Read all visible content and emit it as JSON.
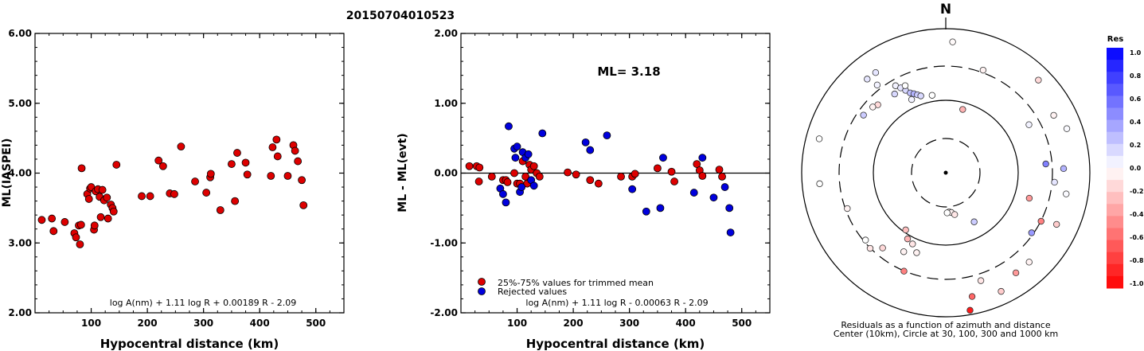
{
  "event_id": "20150704010523",
  "chart_data": [
    {
      "type": "scatter",
      "xlabel": "Hypocentral distance (km)",
      "ylabel": "ML(IASPEI)",
      "xlim": [
        0,
        550
      ],
      "ylim": [
        2.0,
        6.0
      ],
      "xticks": [
        "100",
        "200",
        "300",
        "400",
        "500"
      ],
      "yticks": [
        "2.00",
        "3.00",
        "4.00",
        "5.00",
        "6.00"
      ],
      "formula": "log A(nm) + 1.11 log R + 0.00189 R - 2.09",
      "series": [
        {
          "color": "#dd0000",
          "points": [
            [
              12,
              3.33
            ],
            [
              30,
              3.35
            ],
            [
              33,
              3.17
            ],
            [
              53,
              3.3
            ],
            [
              70,
              3.14
            ],
            [
              73,
              3.08
            ],
            [
              78,
              3.25
            ],
            [
              80,
              2.98
            ],
            [
              82,
              3.26
            ],
            [
              83,
              4.07
            ],
            [
              93,
              3.7
            ],
            [
              96,
              3.63
            ],
            [
              98,
              3.78
            ],
            [
              100,
              3.8
            ],
            [
              105,
              3.19
            ],
            [
              106,
              3.25
            ],
            [
              108,
              3.74
            ],
            [
              112,
              3.77
            ],
            [
              115,
              3.66
            ],
            [
              117,
              3.37
            ],
            [
              120,
              3.76
            ],
            [
              123,
              3.61
            ],
            [
              128,
              3.65
            ],
            [
              130,
              3.35
            ],
            [
              135,
              3.55
            ],
            [
              138,
              3.5
            ],
            [
              140,
              3.45
            ],
            [
              145,
              4.12
            ],
            [
              190,
              3.67
            ],
            [
              205,
              3.67
            ],
            [
              220,
              4.18
            ],
            [
              228,
              4.1
            ],
            [
              240,
              3.71
            ],
            [
              248,
              3.7
            ],
            [
              260,
              4.38
            ],
            [
              285,
              3.88
            ],
            [
              305,
              3.72
            ],
            [
              312,
              3.94
            ],
            [
              313,
              3.99
            ],
            [
              330,
              3.47
            ],
            [
              350,
              4.13
            ],
            [
              356,
              3.6
            ],
            [
              360,
              4.29
            ],
            [
              375,
              4.15
            ],
            [
              378,
              3.98
            ],
            [
              420,
              3.96
            ],
            [
              423,
              4.37
            ],
            [
              430,
              4.48
            ],
            [
              432,
              4.24
            ],
            [
              450,
              3.96
            ],
            [
              460,
              4.4
            ],
            [
              463,
              4.32
            ],
            [
              468,
              4.17
            ],
            [
              475,
              3.9
            ],
            [
              478,
              3.54
            ]
          ]
        }
      ]
    },
    {
      "type": "scatter",
      "xlabel": "Hypocentral distance (km)",
      "ylabel": "ML - ML(evt)",
      "xlim": [
        0,
        550
      ],
      "ylim": [
        -2.0,
        2.0
      ],
      "xticks": [
        "100",
        "200",
        "300",
        "400",
        "500"
      ],
      "yticks": [
        "-2.00",
        "-1.00",
        "0.00",
        "1.00",
        "2.00"
      ],
      "ml_text": "ML= 3.18",
      "formula": "log A(nm) + 1.11 log R - 0.00063 R - 2.09",
      "series": [
        {
          "name": "25%-75% values for trimmed mean",
          "color": "#dd0000",
          "points": [
            [
              15,
              0.1
            ],
            [
              28,
              0.1
            ],
            [
              32,
              -0.12
            ],
            [
              33,
              0.08
            ],
            [
              55,
              -0.05
            ],
            [
              75,
              -0.1
            ],
            [
              80,
              -0.1
            ],
            [
              83,
              -0.13
            ],
            [
              95,
              0.0
            ],
            [
              100,
              -0.15
            ],
            [
              105,
              -0.15
            ],
            [
              110,
              0.17
            ],
            [
              115,
              -0.05
            ],
            [
              118,
              -0.15
            ],
            [
              122,
              0.12
            ],
            [
              125,
              0.05
            ],
            [
              130,
              0.1
            ],
            [
              135,
              0.0
            ],
            [
              140,
              -0.05
            ],
            [
              190,
              0.01
            ],
            [
              205,
              -0.02
            ],
            [
              230,
              -0.1
            ],
            [
              245,
              -0.15
            ],
            [
              285,
              -0.05
            ],
            [
              305,
              -0.05
            ],
            [
              310,
              -0.01
            ],
            [
              350,
              0.07
            ],
            [
              375,
              0.02
            ],
            [
              380,
              -0.12
            ],
            [
              420,
              0.13
            ],
            [
              425,
              0.04
            ],
            [
              430,
              -0.04
            ],
            [
              460,
              0.05
            ],
            [
              465,
              -0.05
            ]
          ]
        },
        {
          "name": "Rejected values",
          "color": "#0000dd",
          "points": [
            [
              70,
              -0.22
            ],
            [
              75,
              -0.3
            ],
            [
              80,
              -0.42
            ],
            [
              85,
              0.67
            ],
            [
              95,
              0.35
            ],
            [
              97,
              0.22
            ],
            [
              100,
              0.38
            ],
            [
              105,
              -0.27
            ],
            [
              108,
              -0.2
            ],
            [
              110,
              0.3
            ],
            [
              115,
              0.22
            ],
            [
              120,
              0.27
            ],
            [
              125,
              -0.1
            ],
            [
              130,
              -0.18
            ],
            [
              145,
              0.57
            ],
            [
              222,
              0.44
            ],
            [
              230,
              0.33
            ],
            [
              260,
              0.54
            ],
            [
              305,
              -0.23
            ],
            [
              330,
              -0.55
            ],
            [
              355,
              -0.5
            ],
            [
              360,
              0.22
            ],
            [
              415,
              -0.28
            ],
            [
              430,
              0.22
            ],
            [
              450,
              -0.35
            ],
            [
              470,
              -0.2
            ],
            [
              478,
              -0.5
            ],
            [
              480,
              -0.85
            ]
          ]
        }
      ]
    },
    {
      "type": "scatter",
      "subtype": "polar-residuals",
      "north_label": "N",
      "caption_line1": "Residuals as a function of azimuth and distance",
      "caption_line2": "Center (10km), Circle at 30, 100, 300 and 1000 km",
      "colorbar_title": "Res",
      "colorbar_ticks": [
        "1.0",
        "0.8",
        "0.6",
        "0.4",
        "0.2",
        "0.0",
        "-0.2",
        "-0.4",
        "-0.6",
        "-0.8",
        "-1.0"
      ],
      "stations_az_dist_res": [
        [
          3,
          300,
          -0.02
        ],
        [
          20,
          250,
          -0.05
        ],
        [
          45,
          300,
          -0.15
        ],
        [
          -35,
          280,
          0.1
        ],
        [
          -38,
          255,
          0.05
        ],
        [
          -30,
          230,
          0.05
        ],
        [
          -28,
          220,
          0.1
        ],
        [
          -26,
          210,
          0.15
        ],
        [
          -24,
          200,
          0.25
        ],
        [
          -22,
          195,
          0.3
        ],
        [
          -20,
          190,
          0.2
        ],
        [
          -18,
          185,
          0.15
        ],
        [
          -33,
          215,
          0.15
        ],
        [
          -25,
          185,
          0.05
        ],
        [
          -10,
          180,
          0.0
        ],
        [
          15,
          150,
          -0.3
        ],
        [
          -45,
          220,
          -0.15
        ],
        [
          -48,
          225,
          -0.05
        ],
        [
          -55,
          230,
          0.2
        ],
        [
          -75,
          300,
          0.0
        ],
        [
          60,
          220,
          0.05
        ],
        [
          62,
          280,
          -0.05
        ],
        [
          70,
          295,
          0.02
        ],
        [
          85,
          230,
          0.5
        ],
        [
          88,
          270,
          0.3
        ],
        [
          95,
          250,
          0.1
        ],
        [
          100,
          280,
          0.02
        ],
        [
          107,
          200,
          -0.4
        ],
        [
          115,
          280,
          -0.2
        ],
        [
          117,
          245,
          -0.5
        ],
        [
          125,
          240,
          0.4
        ],
        [
          137,
          280,
          -0.05
        ],
        [
          145,
          280,
          -0.4
        ],
        [
          162,
          260,
          -0.1
        ],
        [
          168,
          290,
          -0.6
        ],
        [
          170,
          320,
          -0.9
        ],
        [
          175,
          90,
          -0.05
        ],
        [
          172,
          92,
          -0.05
        ],
        [
          168,
          98,
          -0.1
        ],
        [
          178,
          92,
          0.0
        ],
        [
          150,
          130,
          0.2
        ],
        [
          155,
          300,
          -0.2
        ],
        [
          200,
          195,
          -0.05
        ],
        [
          205,
          180,
          -0.1
        ],
        [
          210,
          175,
          -0.3
        ],
        [
          215,
          160,
          -0.25
        ],
        [
          220,
          225,
          -0.15
        ],
        [
          225,
          245,
          -0.1
        ],
        [
          230,
          240,
          0.0
        ],
        [
          203,
          245,
          -0.5
        ],
        [
          208,
          205,
          -0.05
        ],
        [
          250,
          240,
          -0.05
        ],
        [
          265,
          290,
          0.0
        ],
        [
          320,
          280,
          0.1
        ],
        [
          335,
          220,
          0.0
        ]
      ]
    }
  ]
}
